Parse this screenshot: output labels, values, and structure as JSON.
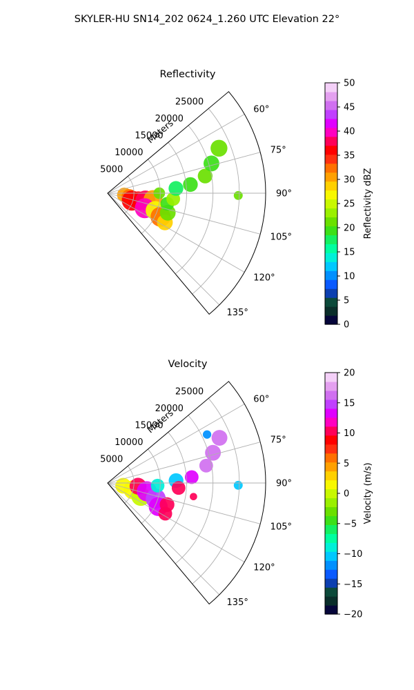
{
  "figure": {
    "suptitle": "SKYLER-HU  SN14_202  0624_1.260 UTC Elevation 22°"
  },
  "chart_data": [
    {
      "type": "heatmap",
      "projection": "polar-sector",
      "title": "Reflectivity",
      "radial_label": "Meters",
      "radial_ticks": [
        5000,
        10000,
        15000,
        20000,
        25000
      ],
      "radial_tick_labels": [
        "5000",
        "10000",
        "15000",
        "20000",
        "25000"
      ],
      "rlim": [
        0,
        30000
      ],
      "azimuth_range_deg": [
        50,
        140
      ],
      "azimuth_ticks_deg": [
        60,
        75,
        90,
        105,
        120,
        135
      ],
      "azimuth_tick_labels": [
        "60°",
        "75°",
        "90°",
        "105°",
        "120°",
        "135°"
      ],
      "grid": true,
      "colorbar": {
        "label": "Reflectivity dBZ",
        "range": [
          0,
          50
        ],
        "ticks": [
          0,
          5,
          10,
          15,
          20,
          25,
          30,
          35,
          40,
          45,
          50
        ],
        "tick_labels": [
          "0",
          "5",
          "10",
          "15",
          "20",
          "25",
          "30",
          "35",
          "40",
          "45",
          "50"
        ],
        "colors": [
          "#06063a",
          "#0a2e2a",
          "#0c4a3a",
          "#0c3fb0",
          "#0a5aff",
          "#0090ff",
          "#00c8ff",
          "#00f0d8",
          "#00ffa0",
          "#14f060",
          "#3ce018",
          "#6ae000",
          "#9af000",
          "#c8f800",
          "#f8f800",
          "#ffd000",
          "#ffa000",
          "#ff7000",
          "#ff3010",
          "#ff0000",
          "#ff0058",
          "#ff00c0",
          "#e000ff",
          "#c040ff",
          "#d070f0",
          "#e4a0f0",
          "#f4d0f8"
        ]
      },
      "echo_cells": [
        {
          "az": 96,
          "r": 3200,
          "rad": 1400,
          "value": 30
        },
        {
          "az": 100,
          "r": 4200,
          "rad": 1500,
          "value": 32
        },
        {
          "az": 107,
          "r": 4800,
          "rad": 1900,
          "value": 37
        },
        {
          "az": 104,
          "r": 6000,
          "rad": 1800,
          "value": 36
        },
        {
          "az": 101,
          "r": 7300,
          "rad": 1900,
          "value": 38
        },
        {
          "az": 98,
          "r": 8700,
          "rad": 1800,
          "value": 30
        },
        {
          "az": 112,
          "r": 7600,
          "rad": 1900,
          "value": 39
        },
        {
          "az": 110,
          "r": 9600,
          "rad": 1800,
          "value": 27
        },
        {
          "az": 114,
          "r": 11000,
          "rad": 1900,
          "value": 33
        },
        {
          "az": 117,
          "r": 12200,
          "rad": 1500,
          "value": 28
        },
        {
          "az": 108,
          "r": 12000,
          "rad": 1500,
          "value": 22
        },
        {
          "az": 100,
          "r": 11500,
          "rad": 1300,
          "value": 20
        },
        {
          "az": 95,
          "r": 12500,
          "rad": 1300,
          "value": 23
        },
        {
          "az": 90,
          "r": 9800,
          "rad": 1100,
          "value": 21
        },
        {
          "az": 86,
          "r": 13000,
          "rad": 1400,
          "value": 18
        },
        {
          "az": 84,
          "r": 15800,
          "rad": 1400,
          "value": 20
        },
        {
          "az": 80,
          "r": 18800,
          "rad": 1400,
          "value": 21
        },
        {
          "az": 74,
          "r": 20500,
          "rad": 1500,
          "value": 20
        },
        {
          "az": 68,
          "r": 22800,
          "rad": 1600,
          "value": 21
        },
        {
          "az": 91,
          "r": 24800,
          "rad": 850,
          "value": 22
        }
      ]
    },
    {
      "type": "heatmap",
      "projection": "polar-sector",
      "title": "Velocity",
      "radial_label": "Meters",
      "radial_ticks": [
        5000,
        10000,
        15000,
        20000,
        25000
      ],
      "radial_tick_labels": [
        "5000",
        "10000",
        "15000",
        "20000",
        "25000"
      ],
      "rlim": [
        0,
        30000
      ],
      "azimuth_range_deg": [
        50,
        140
      ],
      "azimuth_ticks_deg": [
        60,
        75,
        90,
        105,
        120,
        135
      ],
      "azimuth_tick_labels": [
        "60°",
        "75°",
        "90°",
        "105°",
        "120°",
        "135°"
      ],
      "grid": true,
      "colorbar": {
        "label": "Velocity (m/s)",
        "range": [
          -20,
          20
        ],
        "ticks": [
          -20,
          -15,
          -10,
          -5,
          0,
          5,
          10,
          15,
          20
        ],
        "tick_labels": [
          "−20",
          "−15",
          "−10",
          "−5",
          "0",
          "5",
          "10",
          "15",
          "20"
        ],
        "colors": [
          "#06063a",
          "#0a2e2a",
          "#0c4a3a",
          "#0c3fb0",
          "#0a5aff",
          "#0090ff",
          "#00c8ff",
          "#00f0d8",
          "#00ffa0",
          "#14f060",
          "#3ce018",
          "#6ae000",
          "#9af000",
          "#c8f800",
          "#f8f800",
          "#ffd000",
          "#ffa000",
          "#ff7000",
          "#ff3010",
          "#ff0000",
          "#ff0058",
          "#ff00c0",
          "#e000ff",
          "#c040ff",
          "#d070f0",
          "#e4a0f0",
          "#f4d0f8"
        ]
      },
      "echo_cells": [
        {
          "az": 100,
          "r": 3000,
          "rad": 1500,
          "value": 2
        },
        {
          "az": 105,
          "r": 5000,
          "rad": 1800,
          "value": 1
        },
        {
          "az": 112,
          "r": 6800,
          "rad": 1800,
          "value": 0
        },
        {
          "az": 96,
          "r": 5800,
          "rad": 1600,
          "value": 11
        },
        {
          "az": 102,
          "r": 7600,
          "rad": 1900,
          "value": 14
        },
        {
          "az": 108,
          "r": 9600,
          "rad": 1900,
          "value": 15
        },
        {
          "az": 115,
          "r": 10600,
          "rad": 1800,
          "value": 13
        },
        {
          "az": 118,
          "r": 12400,
          "rad": 1300,
          "value": 11
        },
        {
          "az": 110,
          "r": 12000,
          "rad": 1400,
          "value": 10
        },
        {
          "az": 93,
          "r": 9500,
          "rad": 1300,
          "value": -9
        },
        {
          "az": 88,
          "r": 13000,
          "rad": 1400,
          "value": -11
        },
        {
          "az": 94,
          "r": 13500,
          "rad": 1300,
          "value": 11
        },
        {
          "az": 86,
          "r": 16000,
          "rad": 1300,
          "value": 14
        },
        {
          "az": 80,
          "r": 19000,
          "rad": 1300,
          "value": 16
        },
        {
          "az": 74,
          "r": 20800,
          "rad": 1500,
          "value": 17
        },
        {
          "az": 68,
          "r": 22900,
          "rad": 1500,
          "value": 16
        },
        {
          "az": 64,
          "r": 21000,
          "rad": 800,
          "value": -12
        },
        {
          "az": 99,
          "r": 16500,
          "rad": 700,
          "value": 10
        },
        {
          "az": 91,
          "r": 24800,
          "rad": 850,
          "value": -11
        }
      ]
    }
  ]
}
